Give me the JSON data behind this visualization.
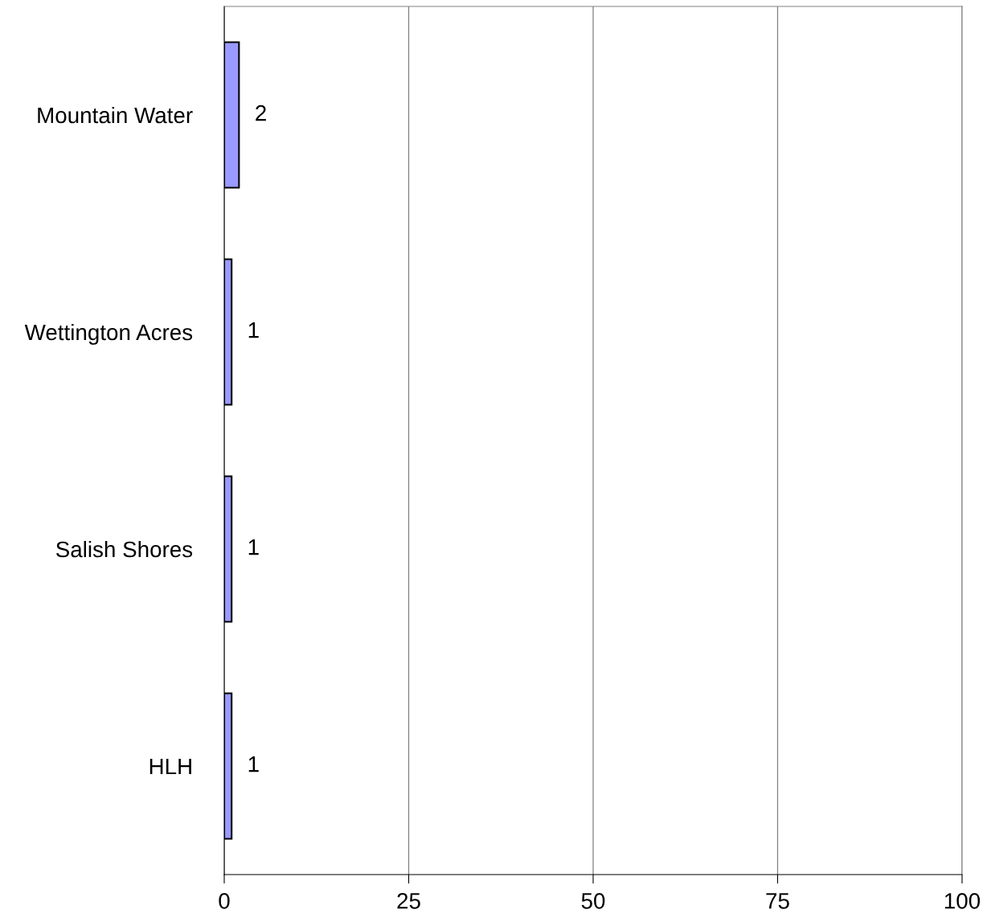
{
  "chart_data": {
    "type": "bar",
    "orientation": "horizontal",
    "categories": [
      "Mountain Water",
      "Wettington Acres",
      "Salish Shores",
      "HLH"
    ],
    "values": [
      2,
      1,
      1,
      1
    ],
    "color": "#9999ff",
    "xlim": [
      0,
      100
    ],
    "xticks": [
      0,
      25,
      50,
      75,
      100
    ],
    "grid": "x",
    "data_labels": true
  }
}
